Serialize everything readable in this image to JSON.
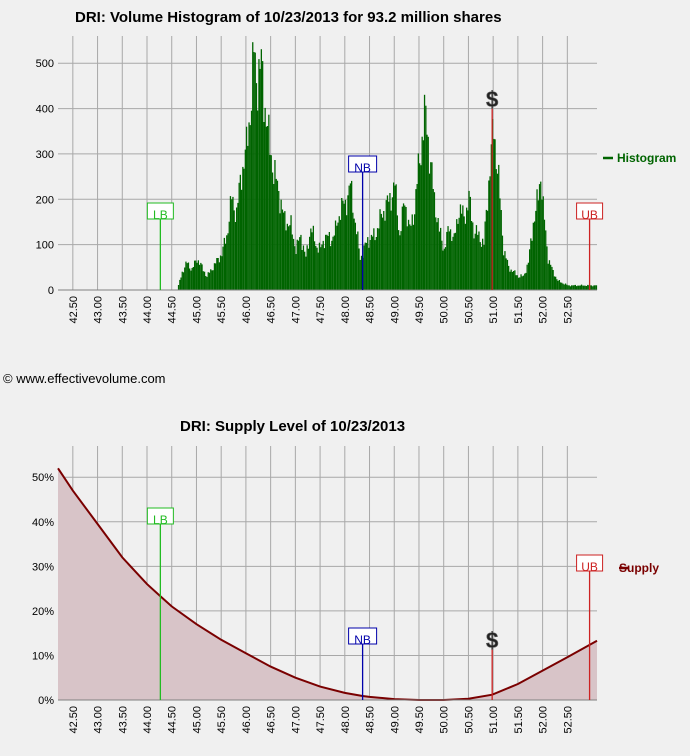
{
  "footer": {
    "copyright": "© www.effectivevolume.com"
  },
  "chart_data": [
    {
      "type": "area",
      "title": "DRI: Volume Histogram of 10/23/2013 for 93.2 million shares",
      "xlabel": "",
      "ylabel": "",
      "x_ticks": [
        "42.50",
        "43.00",
        "43.50",
        "44.00",
        "44.50",
        "45.00",
        "45.50",
        "46.00",
        "46.50",
        "47.00",
        "47.50",
        "48.00",
        "48.50",
        "49.00",
        "49.50",
        "50.00",
        "50.50",
        "51.00",
        "51.50",
        "52.00",
        "52.50"
      ],
      "y_ticks": [
        "0",
        "100",
        "200",
        "300",
        "400",
        "500"
      ],
      "xlim": [
        42.2,
        53.1
      ],
      "ylim": [
        0,
        560
      ],
      "grid": true,
      "legend": "right",
      "series": [
        {
          "name": "Histogram",
          "color": "#006400",
          "x": [
            42.2,
            44.6,
            44.65,
            44.7,
            44.8,
            44.9,
            45.0,
            45.1,
            45.2,
            45.35,
            45.5,
            45.6,
            45.7,
            45.8,
            45.9,
            46.0,
            46.05,
            46.1,
            46.15,
            46.2,
            46.3,
            46.4,
            46.45,
            46.5,
            46.55,
            46.65,
            46.75,
            46.9,
            47.0,
            47.1,
            47.2,
            47.3,
            47.4,
            47.5,
            47.6,
            47.7,
            47.8,
            47.9,
            48.0,
            48.1,
            48.2,
            48.3,
            48.45,
            48.6,
            48.75,
            48.9,
            49.0,
            49.1,
            49.2,
            49.3,
            49.4,
            49.5,
            49.6,
            49.65,
            49.7,
            49.8,
            49.9,
            50.0,
            50.1,
            50.2,
            50.3,
            50.4,
            50.5,
            50.6,
            50.7,
            50.8,
            50.9,
            50.95,
            51.0,
            51.1,
            51.2,
            51.3,
            51.4,
            51.5,
            51.6,
            51.7,
            51.8,
            51.85,
            51.9,
            51.95,
            52.0,
            52.1,
            52.2,
            52.3,
            52.5,
            52.7,
            53.1
          ],
          "values": [
            0,
            0,
            20,
            40,
            60,
            45,
            70,
            50,
            30,
            55,
            80,
            120,
            200,
            170,
            260,
            310,
            370,
            430,
            520,
            470,
            490,
            380,
            330,
            300,
            260,
            220,
            160,
            140,
            90,
            120,
            70,
            140,
            100,
            90,
            120,
            110,
            130,
            180,
            190,
            230,
            150,
            70,
            110,
            120,
            170,
            200,
            230,
            120,
            200,
            130,
            180,
            290,
            380,
            370,
            300,
            200,
            130,
            90,
            140,
            110,
            180,
            160,
            200,
            130,
            120,
            100,
            240,
            300,
            360,
            240,
            90,
            50,
            40,
            30,
            30,
            60,
            150,
            170,
            210,
            260,
            180,
            70,
            40,
            20,
            10,
            10,
            10
          ]
        }
      ],
      "markers": [
        {
          "label": "LB",
          "x": 44.27,
          "color": "#22bb22"
        },
        {
          "label": "NB",
          "x": 48.36,
          "color": "#0000aa"
        },
        {
          "label": "UB",
          "x": 52.95,
          "color": "#cc2222"
        },
        {
          "label": "$",
          "x": 50.98,
          "color": "#333333"
        }
      ]
    },
    {
      "type": "area",
      "title": "DRI: Supply Level of 10/23/2013",
      "xlabel": "",
      "ylabel": "",
      "x_ticks": [
        "42.50",
        "43.00",
        "43.50",
        "44.00",
        "44.50",
        "45.00",
        "45.50",
        "46.00",
        "46.50",
        "47.00",
        "47.50",
        "48.00",
        "48.50",
        "49.00",
        "49.50",
        "50.00",
        "50.50",
        "51.00",
        "51.50",
        "52.00",
        "52.50"
      ],
      "y_ticks": [
        "0%",
        "10%",
        "20%",
        "30%",
        "40%",
        "50%"
      ],
      "xlim": [
        42.2,
        53.1
      ],
      "ylim": [
        0,
        57
      ],
      "grid": true,
      "legend": "right",
      "series": [
        {
          "name": "Supply",
          "color": "#7a0000",
          "x": [
            42.2,
            42.5,
            43.0,
            43.5,
            44.0,
            44.27,
            44.5,
            45.0,
            45.5,
            46.0,
            46.5,
            47.0,
            47.5,
            48.0,
            48.36,
            48.5,
            49.0,
            49.5,
            50.0,
            50.5,
            50.98,
            51.5,
            52.0,
            52.5,
            53.1
          ],
          "values": [
            52.0,
            47.0,
            39.5,
            32.0,
            26.0,
            23.3,
            21.0,
            17.0,
            13.5,
            10.5,
            7.5,
            5.0,
            3.0,
            1.6,
            0.9,
            0.7,
            0.2,
            0.0,
            0.0,
            0.3,
            1.2,
            3.6,
            6.6,
            9.6,
            13.3
          ]
        }
      ],
      "markers": [
        {
          "label": "LB",
          "x": 44.27,
          "color": "#22bb22"
        },
        {
          "label": "NB",
          "x": 48.36,
          "color": "#0000aa"
        },
        {
          "label": "UB",
          "x": 52.95,
          "color": "#cc2222"
        },
        {
          "label": "$",
          "x": 50.98,
          "color": "#333333"
        }
      ]
    }
  ]
}
